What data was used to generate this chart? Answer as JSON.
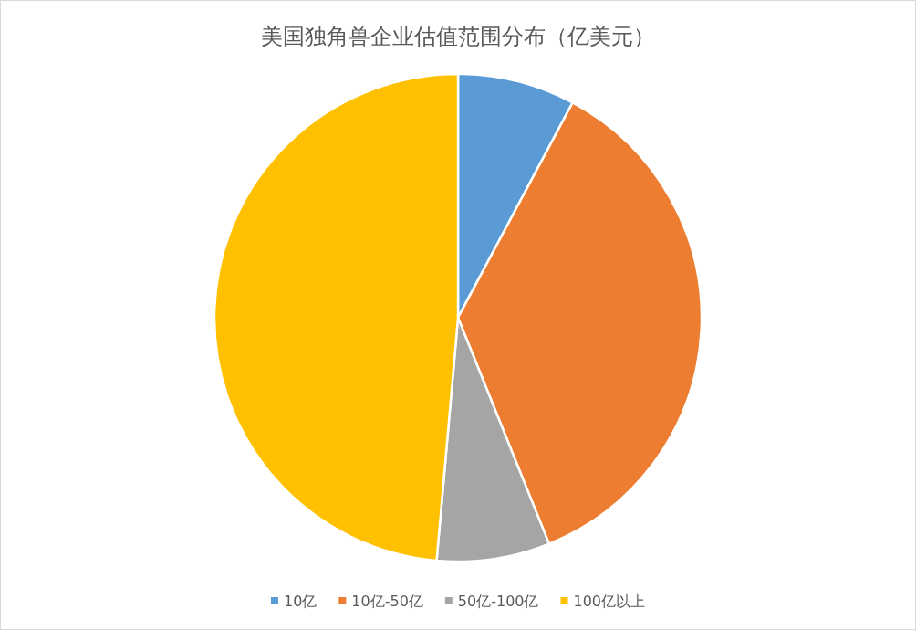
{
  "chart_data": {
    "type": "pie",
    "title": "美国独角兽企业估值范围分布（亿美元）",
    "categories": [
      "10亿",
      "10亿-50亿",
      "50亿-100亿",
      "100亿以上"
    ],
    "values": [
      7.8,
      36.1,
      7.5,
      48.6
    ],
    "colors": [
      "#5b9bd5",
      "#ed7d31",
      "#a5a5a5",
      "#ffc000"
    ],
    "legend": "bottom"
  }
}
